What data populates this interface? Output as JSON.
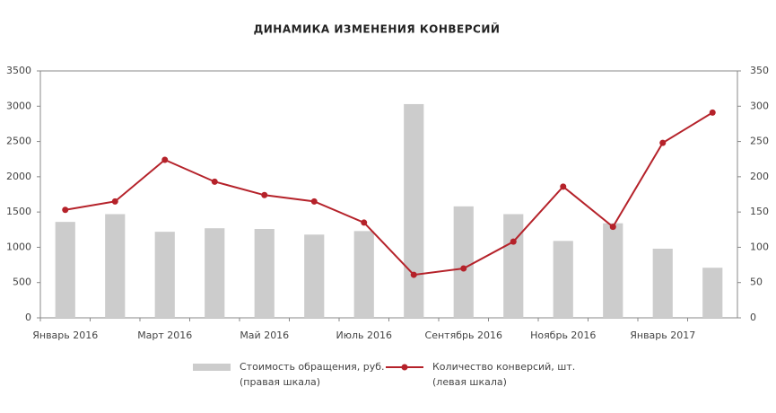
{
  "chart_data": {
    "type": "bar-line",
    "title": "ДИНАМИКА ИЗМЕНЕНИЯ КОНВЕРСИЙ",
    "categories": [
      "Январь 2016",
      null,
      "Март 2016",
      null,
      "Май 2016",
      null,
      "Июль 2016",
      null,
      "Сентябрь 2016",
      null,
      "Ноябрь 2016",
      null,
      "Январь 2017",
      null
    ],
    "series": [
      {
        "name": "Стоимость обращения, руб.",
        "scale_note": "(правая шкала)",
        "type": "bar",
        "color": "#cccccc",
        "values": [
          1360,
          1470,
          1220,
          1270,
          1260,
          1180,
          1230,
          3030,
          1580,
          1470,
          1090,
          1340,
          980,
          710
        ]
      },
      {
        "name": "Количество конверсий, шт.",
        "scale_note": "(левая шкала)",
        "type": "line",
        "color": "#b5222a",
        "axis": "y2",
        "values": [
          153,
          165,
          224,
          193,
          174,
          165,
          135,
          61,
          70,
          108,
          186,
          129,
          248,
          291
        ]
      }
    ],
    "ylim": [
      0,
      3500
    ],
    "yticks": [
      0,
      500,
      1000,
      1500,
      2000,
      2500,
      3000,
      3500
    ],
    "y2lim": [
      0,
      350
    ],
    "y2ticks": [
      0,
      50,
      100,
      150,
      200,
      250,
      300,
      350
    ]
  }
}
